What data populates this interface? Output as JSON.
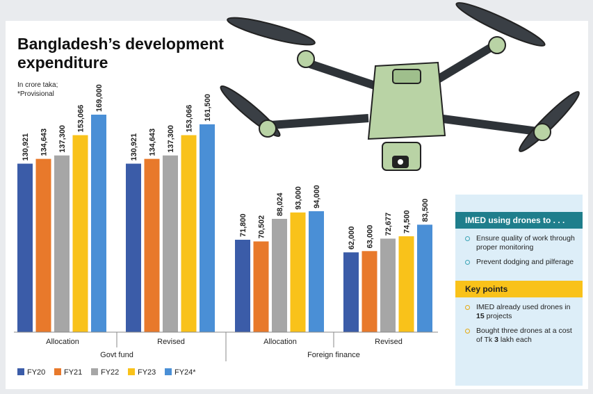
{
  "chart_data": {
    "type": "bar",
    "title": "Bangladesh’s development expenditure",
    "notes": [
      "In crore taka;",
      "*Provisional"
    ],
    "categories": [
      "Allocation",
      "Revised",
      "Allocation",
      "Revised"
    ],
    "groups": [
      "Govt fund",
      "Foreign finance"
    ],
    "series": [
      {
        "name": "FY20",
        "color": "#3b5ca8",
        "values": [
          130921,
          130921,
          71800,
          62000
        ],
        "value_labels": [
          "130,921",
          "130,921",
          "71,800",
          "62,000"
        ]
      },
      {
        "name": "FY21",
        "color": "#e8792b",
        "values": [
          134643,
          134643,
          70502,
          63000
        ],
        "value_labels": [
          "134,643",
          "134,643",
          "70,502",
          "63,000"
        ]
      },
      {
        "name": "FY22",
        "color": "#a6a6a6",
        "values": [
          137300,
          137300,
          88024,
          72677
        ],
        "value_labels": [
          "137,300",
          "137,300",
          "88,024",
          "72,677"
        ]
      },
      {
        "name": "FY23",
        "color": "#f9c21a",
        "values": [
          153066,
          153066,
          93000,
          74500
        ],
        "value_labels": [
          "153,066",
          "153,066",
          "93,000",
          "74,500"
        ]
      },
      {
        "name": "FY24*",
        "color": "#4a8fd6",
        "values": [
          169000,
          161500,
          94000,
          83500
        ],
        "value_labels": [
          "169,000",
          "161,500",
          "94,000",
          "83,500"
        ]
      }
    ]
  },
  "panel": {
    "uses": {
      "heading": "IMED using drones to . . .",
      "items": [
        "Ensure quality of work through proper monitoring",
        "Prevent dodging and pilferage"
      ]
    },
    "key_points": {
      "heading": "Key points",
      "items": [
        [
          "IMED already used drones in ",
          "15",
          " projects"
        ],
        [
          "Bought three drones at a cost of Tk ",
          "3",
          " lakh each"
        ]
      ]
    }
  }
}
